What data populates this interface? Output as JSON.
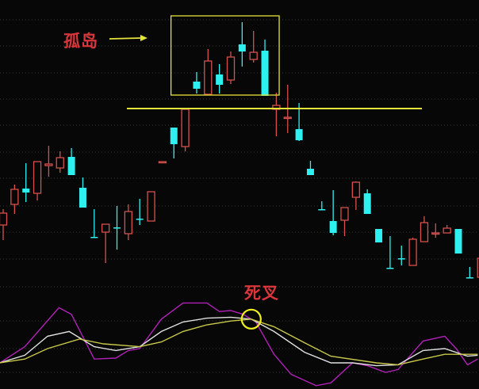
{
  "annotations": {
    "island_label": "孤岛",
    "death_cross_label": "死叉"
  },
  "colors": {
    "background": "#070707",
    "up": "#d5504e",
    "down": "#2ff0f0",
    "annotation": "#e4e33a",
    "label": "#d8363b",
    "k_line": "#e0e0e0",
    "d_line": "#c8c84a",
    "j_line": "#b020b8",
    "grid": "#3a3a3a"
  },
  "chart_data": [
    {
      "type": "candlestick",
      "title": "",
      "grid": true,
      "ylim": [
        5,
        40
      ],
      "island_reference_level": 26.3,
      "candles": [
        {
          "i": 0,
          "o": 11.6,
          "h": 13.6,
          "l": 9.7,
          "c": 13.1
        },
        {
          "i": 1,
          "o": 14.2,
          "h": 16.7,
          "l": 13.0,
          "c": 16.1
        },
        {
          "i": 2,
          "o": 16.2,
          "h": 19.4,
          "l": 14.5,
          "c": 15.7
        },
        {
          "i": 3,
          "o": 15.6,
          "h": 19.6,
          "l": 14.7,
          "c": 19.6
        },
        {
          "i": 4,
          "o": 19.1,
          "h": 21.6,
          "l": 17.7,
          "c": 19.3
        },
        {
          "i": 5,
          "o": 18.8,
          "h": 20.9,
          "l": 18.2,
          "c": 20.1
        },
        {
          "i": 6,
          "o": 20.2,
          "h": 21.3,
          "l": 17.9,
          "c": 17.9
        },
        {
          "i": 7,
          "o": 16.3,
          "h": 17.6,
          "l": 13.8,
          "c": 13.8
        },
        {
          "i": 8,
          "o": 10.1,
          "h": 13.6,
          "l": 10.1,
          "c": 10.1,
          "dir": "down"
        },
        {
          "i": 9,
          "o": 10.7,
          "h": 11.7,
          "l": 6.8,
          "c": 11.7
        },
        {
          "i": 10,
          "o": 11.3,
          "h": 14.0,
          "l": 8.5,
          "c": 11.3,
          "dir": "down"
        },
        {
          "i": 11,
          "o": 10.5,
          "h": 14.2,
          "l": 9.7,
          "c": 13.3
        },
        {
          "i": 12,
          "o": 12.4,
          "h": 14.9,
          "l": 11.6,
          "c": 12.4,
          "dir": "down"
        },
        {
          "i": 13,
          "o": 12.1,
          "h": 15.8,
          "l": 12.1,
          "c": 15.8
        },
        {
          "i": 14,
          "o": 19.6,
          "h": 19.6,
          "l": 19.6,
          "c": 19.6,
          "dir": "up"
        },
        {
          "i": 15,
          "o": 23.9,
          "h": 23.9,
          "l": 20.0,
          "c": 21.8
        },
        {
          "i": 16,
          "o": 21.5,
          "h": 26.2,
          "l": 20.9,
          "c": 26.2
        },
        {
          "i": 17,
          "o": 29.7,
          "h": 30.9,
          "l": 28.2,
          "c": 28.8
        },
        {
          "i": 18,
          "o": 28.1,
          "h": 33.8,
          "l": 28.1,
          "c": 32.3
        },
        {
          "i": 19,
          "o": 30.6,
          "h": 31.9,
          "l": 28.2,
          "c": 29.3
        },
        {
          "i": 20,
          "o": 29.9,
          "h": 33.5,
          "l": 29.4,
          "c": 32.8
        },
        {
          "i": 21,
          "o": 34.4,
          "h": 37.2,
          "l": 31.6,
          "c": 33.5
        },
        {
          "i": 22,
          "o": 32.5,
          "h": 36.1,
          "l": 32.1,
          "c": 33.4
        },
        {
          "i": 23,
          "o": 33.6,
          "h": 35.0,
          "l": 27.9,
          "c": 27.9
        },
        {
          "i": 24,
          "o": 26.2,
          "h": 28.3,
          "l": 22.8,
          "c": 26.7
        },
        {
          "i": 25,
          "o": 25.2,
          "h": 29.3,
          "l": 23.2,
          "c": 25.2,
          "dir": "up"
        },
        {
          "i": 26,
          "o": 23.7,
          "h": 27.0,
          "l": 22.2,
          "c": 22.3
        },
        {
          "i": 27,
          "o": 18.7,
          "h": 19.7,
          "l": 17.9,
          "c": 17.9
        },
        {
          "i": 28,
          "o": 13.6,
          "h": 14.6,
          "l": 13.6,
          "c": 13.6,
          "dir": "down"
        },
        {
          "i": 29,
          "o": 12.1,
          "h": 16.0,
          "l": 10.3,
          "c": 10.6
        },
        {
          "i": 30,
          "o": 12.2,
          "h": 13.8,
          "l": 10.2,
          "c": 13.8
        },
        {
          "i": 31,
          "o": 15.1,
          "h": 17.1,
          "l": 13.5,
          "c": 17.0
        },
        {
          "i": 32,
          "o": 15.6,
          "h": 16.1,
          "l": 13.0,
          "c": 13.0
        },
        {
          "i": 33,
          "o": 11.1,
          "h": 11.1,
          "l": 9.4,
          "c": 9.4
        },
        {
          "i": 34,
          "o": 6.2,
          "h": 10.2,
          "l": 6.2,
          "c": 6.2,
          "dir": "down"
        },
        {
          "i": 35,
          "o": 7.4,
          "h": 9.0,
          "l": 6.5,
          "c": 7.4,
          "dir": "down"
        },
        {
          "i": 36,
          "o": 6.5,
          "h": 10.0,
          "l": 6.5,
          "c": 9.8
        },
        {
          "i": 37,
          "o": 9.5,
          "h": 12.7,
          "l": 9.5,
          "c": 11.9
        },
        {
          "i": 38,
          "o": 10.6,
          "h": 11.8,
          "l": 10.0,
          "c": 10.6,
          "dir": "up"
        },
        {
          "i": 39,
          "o": 10.6,
          "h": 11.6,
          "l": 10.6,
          "c": 11.2
        },
        {
          "i": 40,
          "o": 11.1,
          "h": 11.1,
          "l": 8.0,
          "c": 8.0
        },
        {
          "i": 41,
          "o": 5.0,
          "h": 6.3,
          "l": 5.0,
          "c": 5.0,
          "dir": "down"
        },
        {
          "i": 42,
          "o": 5.0,
          "h": 7.4,
          "l": 5.0,
          "c": 7.4
        }
      ],
      "island_range": [
        16,
        23
      ]
    },
    {
      "type": "line",
      "title": "",
      "grid": true,
      "ylim": [
        0,
        100
      ],
      "death_cross": {
        "x": 21.8,
        "y": 71
      },
      "series": [
        {
          "key": "j",
          "x": [
            -0.3,
            1.9,
            4.9,
            6.0,
            8.0,
            9.9,
            11.0,
            12.0,
            13.9,
            15.8,
            17.9,
            19.0,
            20.0,
            21.1,
            22.2,
            23.8,
            25.3,
            27.5,
            28.8,
            30.7,
            32.0,
            33.6,
            34.7,
            36.9,
            38.8,
            39.8,
            40.8,
            41.7
          ],
          "y": [
            25,
            42,
            83,
            76,
            29,
            30,
            38,
            40,
            71,
            88,
            88,
            79,
            80,
            76,
            68,
            34,
            13,
            1,
            4,
            25,
            22,
            15,
            18,
            48,
            53,
            40,
            23,
            29
          ]
        },
        {
          "key": "k",
          "x": [
            -0.3,
            1.9,
            3.9,
            5.8,
            6.9,
            8.0,
            9.9,
            12.0,
            13.9,
            15.8,
            17.9,
            20.0,
            21.8,
            23.8,
            26.5,
            28.8,
            30.7,
            32.8,
            34.7,
            36.9,
            38.8,
            40.8,
            41.7
          ],
          "y": [
            25,
            33,
            53,
            58,
            50,
            42,
            38,
            42,
            58,
            68,
            72,
            73,
            71,
            58,
            36,
            25,
            25,
            22,
            23,
            38,
            40,
            32,
            33
          ]
        },
        {
          "key": "d",
          "x": [
            -0.3,
            1.9,
            3.9,
            6.7,
            8.8,
            12.0,
            13.9,
            15.8,
            17.9,
            20.0,
            21.8,
            23.8,
            26.5,
            28.8,
            32.8,
            34.7,
            36.9,
            38.8,
            40.8,
            41.7
          ],
          "y": [
            25,
            29,
            40,
            50,
            45,
            42,
            47,
            58,
            65,
            69,
            71,
            63,
            46,
            32,
            25,
            23,
            29,
            34,
            34,
            34
          ]
        }
      ]
    }
  ]
}
